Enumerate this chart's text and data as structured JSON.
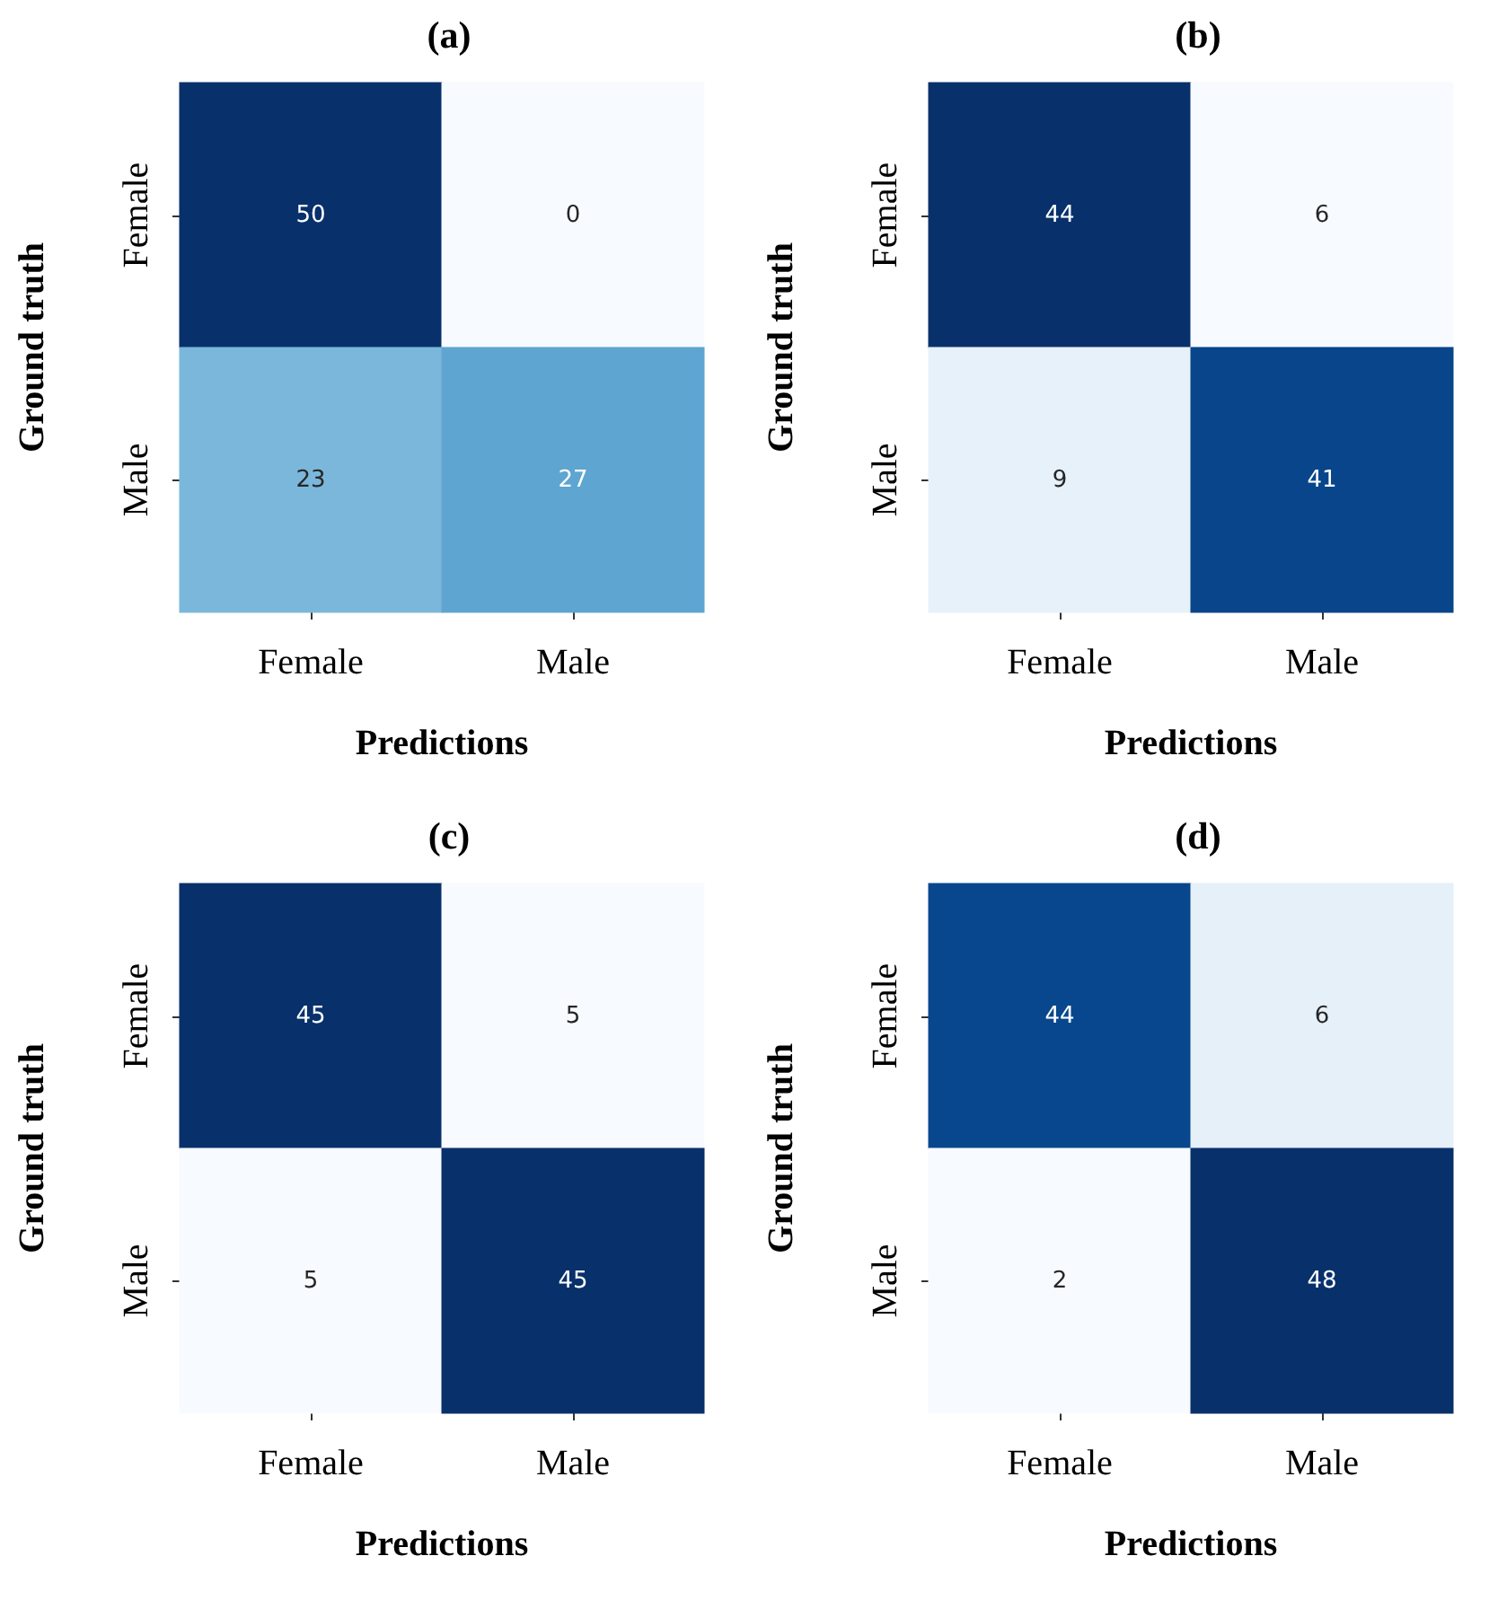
{
  "chart_data": [
    {
      "type": "heatmap",
      "title": "(a)",
      "xlabel": "Predictions",
      "ylabel": "Ground truth",
      "categories": [
        "Female",
        "Male"
      ],
      "y_categories": [
        "Female",
        "Male"
      ],
      "cells": [
        [
          50,
          0
        ],
        [
          23,
          27
        ]
      ],
      "data_labels": true
    },
    {
      "type": "heatmap",
      "title": "(b)",
      "xlabel": "Predictions",
      "ylabel": "Ground truth",
      "categories": [
        "Female",
        "Male"
      ],
      "y_categories": [
        "Female",
        "Male"
      ],
      "cells": [
        [
          44,
          6
        ],
        [
          9,
          41
        ]
      ],
      "data_labels": true
    },
    {
      "type": "heatmap",
      "title": "(c)",
      "xlabel": "Predictions",
      "ylabel": "Ground truth",
      "categories": [
        "Female",
        "Male"
      ],
      "y_categories": [
        "Female",
        "Male"
      ],
      "cells": [
        [
          45,
          5
        ],
        [
          5,
          45
        ]
      ],
      "data_labels": true
    },
    {
      "type": "heatmap",
      "title": "(d)",
      "xlabel": "Predictions",
      "ylabel": "Ground truth",
      "categories": [
        "Female",
        "Male"
      ],
      "y_categories": [
        "Female",
        "Male"
      ],
      "cells": [
        [
          44,
          6
        ],
        [
          2,
          48
        ]
      ],
      "data_labels": true
    }
  ]
}
